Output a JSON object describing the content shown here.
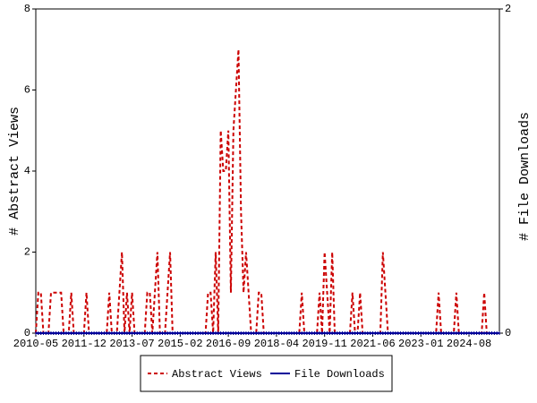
{
  "chart_data": {
    "type": "line",
    "xlabel": null,
    "ylabel": "# Abstract Views",
    "y2label": "# File Downloads",
    "categories": [
      "2010-05",
      null,
      null,
      null,
      null,
      null,
      null,
      null,
      null,
      null,
      null,
      null,
      null,
      null,
      null,
      null,
      null,
      null,
      null,
      "2011-12",
      null,
      null,
      null,
      null,
      null,
      null,
      null,
      null,
      null,
      null,
      null,
      null,
      null,
      null,
      null,
      null,
      null,
      null,
      "2013-07",
      null,
      null,
      null,
      null,
      null,
      null,
      null,
      null,
      null,
      null,
      null,
      null,
      null,
      null,
      null,
      null,
      null,
      null,
      "2015-02",
      null,
      null,
      null,
      null,
      null,
      null,
      null,
      null,
      null,
      null,
      null,
      null,
      null,
      null,
      null,
      null,
      null,
      null,
      "2016-09",
      null,
      null,
      null,
      null,
      null,
      null,
      null,
      null,
      null,
      null,
      null,
      null,
      null,
      null,
      null,
      null,
      null,
      null,
      "2018-04",
      null,
      null,
      null,
      null,
      null,
      null,
      null,
      null,
      null,
      null,
      null,
      null,
      null,
      null,
      null,
      null,
      null,
      null,
      "2019-11",
      null,
      null,
      null,
      null,
      null,
      null,
      null,
      null,
      null,
      null,
      null,
      null,
      null,
      null,
      null,
      null,
      null,
      null,
      "2021-06",
      null,
      null,
      null,
      null,
      null,
      null,
      null,
      null,
      null,
      null,
      null,
      null,
      null,
      null,
      null,
      null,
      null,
      null,
      "2023-01",
      null,
      null,
      null,
      null,
      null,
      null,
      null,
      null,
      null,
      null,
      null,
      null,
      null,
      null,
      null,
      null,
      null,
      null,
      "2024-08",
      null,
      null,
      null,
      null,
      null,
      null,
      null,
      null,
      null,
      null,
      null,
      null
    ],
    "series": [
      {
        "name": "Abstract Views",
        "color": "#cc0000",
        "dash": true,
        "values": [
          0,
          1,
          1,
          0,
          0,
          0,
          1,
          1,
          1,
          1,
          1,
          0,
          0,
          0,
          1,
          0,
          0,
          0,
          0,
          0,
          1,
          0,
          0,
          0,
          0,
          0,
          0,
          0,
          0,
          1,
          0,
          0,
          0,
          1,
          2,
          0,
          1,
          0,
          1,
          0,
          0,
          0,
          0,
          0,
          1,
          1,
          0,
          1,
          2,
          0,
          0,
          0,
          1,
          2,
          0,
          0,
          0,
          0,
          0,
          0,
          0,
          0,
          0,
          0,
          0,
          0,
          0,
          0,
          1,
          1,
          0,
          2,
          0,
          5,
          4,
          4,
          5,
          1,
          5,
          6,
          7,
          3,
          1,
          2,
          1,
          0,
          0,
          0,
          1,
          1,
          0,
          0,
          0,
          0,
          0,
          0,
          0,
          0,
          0,
          0,
          0,
          0,
          0,
          0,
          0,
          1,
          0,
          0,
          0,
          0,
          0,
          0,
          1,
          0,
          2,
          1,
          0,
          2,
          0,
          0,
          0,
          0,
          0,
          0,
          0,
          1,
          0,
          0,
          1,
          0,
          0,
          0,
          0,
          0,
          0,
          0,
          0,
          2,
          1,
          0,
          0,
          0,
          0,
          0,
          0,
          0,
          0,
          0,
          0,
          0,
          0,
          0,
          0,
          0,
          0,
          0,
          0,
          0,
          0,
          1,
          0,
          0,
          0,
          0,
          0,
          0,
          1,
          0,
          0,
          0,
          0,
          0,
          0,
          0,
          0,
          0,
          0,
          1,
          0,
          0,
          0,
          0,
          0,
          0
        ]
      },
      {
        "name": "File Downloads",
        "color": "#000099",
        "dash": false,
        "axis": "y2",
        "values": [
          0,
          0,
          0,
          0,
          0,
          0,
          0,
          0,
          0,
          0,
          0,
          0,
          0,
          0,
          0,
          0,
          0,
          0,
          0,
          0,
          0,
          0,
          0,
          0,
          0,
          0,
          0,
          0,
          0,
          0,
          0,
          0,
          0,
          0,
          0,
          0,
          0,
          0,
          0,
          0,
          0,
          0,
          0,
          0,
          0,
          0,
          0,
          0,
          0,
          0,
          0,
          0,
          0,
          0,
          0,
          0,
          0,
          0,
          0,
          0,
          0,
          0,
          0,
          0,
          0,
          0,
          0,
          0,
          0,
          0,
          0,
          0,
          0,
          0,
          0,
          0,
          0,
          0,
          0,
          0,
          0,
          0,
          0,
          0,
          0,
          0,
          0,
          0,
          0,
          0,
          0,
          0,
          0,
          0,
          0,
          0,
          0,
          0,
          0,
          0,
          0,
          0,
          0,
          0,
          0,
          0,
          0,
          0,
          0,
          0,
          0,
          0,
          0,
          0,
          0,
          0,
          0,
          0,
          0,
          0,
          0,
          0,
          0,
          0,
          0,
          0,
          0,
          0,
          0,
          0,
          0,
          0,
          0,
          0,
          0,
          0,
          0,
          0,
          0,
          0,
          0,
          0,
          0,
          0,
          0,
          0,
          0,
          0,
          0,
          0,
          0,
          0,
          0,
          0,
          0,
          0,
          0,
          0,
          0,
          0,
          0,
          0,
          0,
          0,
          0,
          0,
          0,
          0,
          0,
          0,
          0,
          0,
          0,
          0,
          0,
          0,
          0,
          0,
          0,
          0,
          0,
          0,
          0,
          0
        ]
      }
    ],
    "ylim": [
      0,
      8
    ],
    "yticks": [
      0,
      2,
      4,
      6,
      8
    ],
    "y2lim": [
      0,
      2
    ],
    "y2ticks": [
      0,
      2
    ]
  }
}
